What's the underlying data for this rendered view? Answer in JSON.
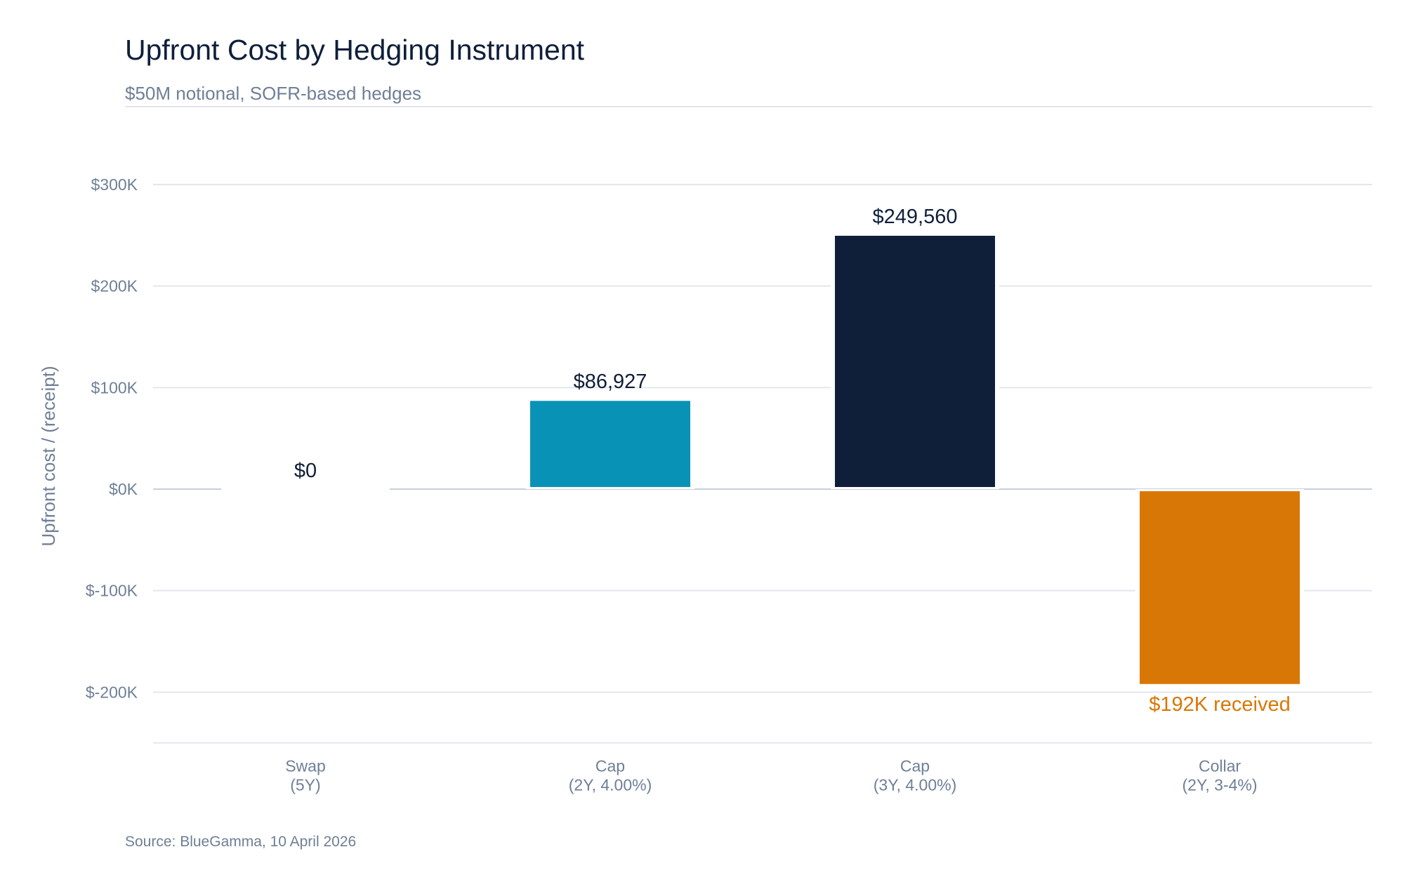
{
  "header": {
    "title": "Upfront Cost by Hedging Instrument",
    "subtitle": "$50M notional, SOFR-based hedges"
  },
  "footer": {
    "source": "Source: BlueGamma, 10 April 2026"
  },
  "chart_data": {
    "type": "bar",
    "title": "Upfront Cost by Hedging Instrument",
    "subtitle": "$50M notional, SOFR-based hedges",
    "xlabel": "",
    "ylabel": "Upfront cost / (receipt)",
    "ylim": [
      -250000,
      300000
    ],
    "yticks": [
      300000,
      200000,
      100000,
      0,
      -100000,
      -200000
    ],
    "ytick_labels": [
      "$300K",
      "$200K",
      "$100K",
      "$0K",
      "$-100K",
      "$-200K"
    ],
    "grid": true,
    "categories": [
      [
        "Swap",
        "(5Y)"
      ],
      [
        "Cap",
        "(2Y, 4.00%)"
      ],
      [
        "Cap",
        "(3Y, 4.00%)"
      ],
      [
        "Collar",
        "(2Y, 3-4%)"
      ]
    ],
    "values": [
      0,
      86927,
      249560,
      -192000
    ],
    "data_labels": [
      "$0",
      "$86,927",
      "$249,560",
      "$192K received"
    ],
    "colors": [
      "#0893b6",
      "#0893b6",
      "#0f1f3a",
      "#d97706"
    ],
    "label_colors": [
      "#0f1f3a",
      "#0f1f3a",
      "#0f1f3a",
      "#d97706"
    ],
    "gridline_color": "#e3e7ed",
    "zero_line_color": "#c8d0da"
  }
}
